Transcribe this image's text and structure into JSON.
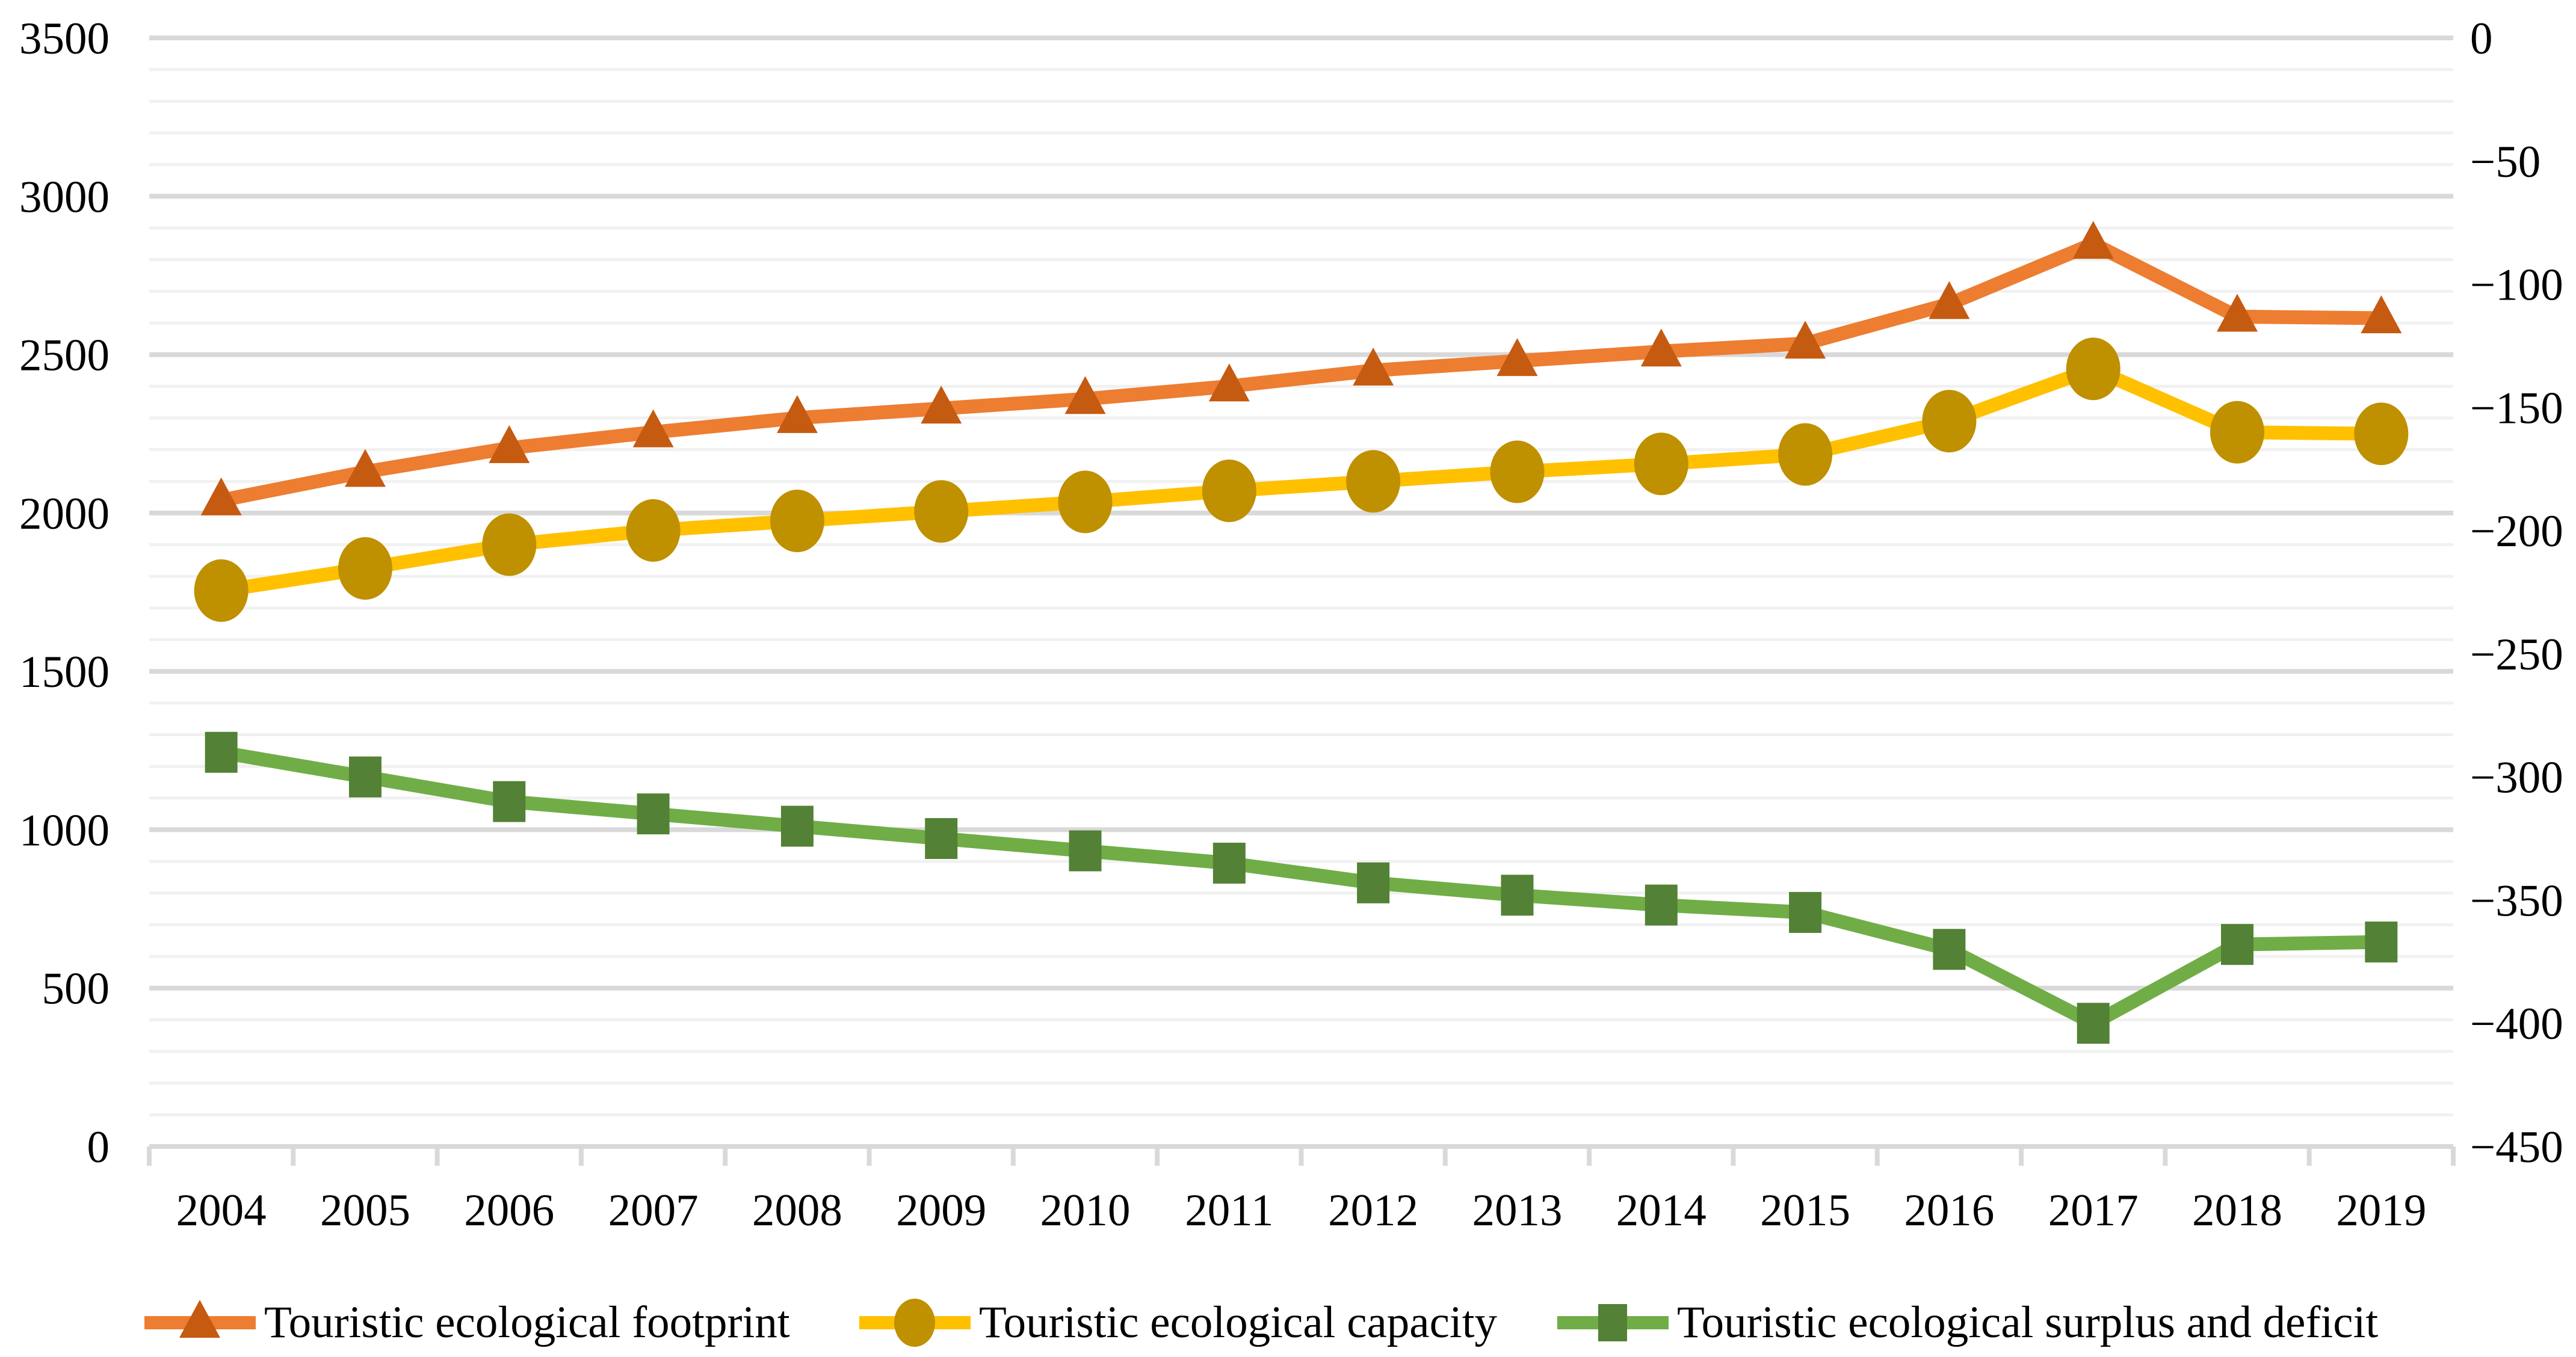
{
  "chart_data": {
    "type": "line",
    "title": "",
    "x_categories": [
      "2004",
      "2005",
      "2006",
      "2007",
      "2008",
      "2009",
      "2010",
      "2011",
      "2012",
      "2013",
      "2014",
      "2015",
      "2016",
      "2017",
      "2018",
      "2019"
    ],
    "left_axis": {
      "min": 0,
      "max": 3500,
      "major_step": 500,
      "minor_step": 100,
      "ticks": [
        0,
        500,
        1000,
        1500,
        2000,
        2500,
        3000,
        3500
      ]
    },
    "right_axis": {
      "min": -450,
      "max": 0,
      "major_step": 50,
      "ticks": [
        {
          "v": 0,
          "label": "0"
        },
        {
          "v": -50,
          "label": "−50"
        },
        {
          "v": -100,
          "label": "−100"
        },
        {
          "v": -150,
          "label": "−150"
        },
        {
          "v": -200,
          "label": "−200"
        },
        {
          "v": -250,
          "label": "−250"
        },
        {
          "v": -300,
          "label": "−300"
        },
        {
          "v": -350,
          "label": "−350"
        },
        {
          "v": -400,
          "label": "−400"
        },
        {
          "v": -450,
          "label": "−450"
        }
      ]
    },
    "grid": {
      "minor_color": "#F1F1F1",
      "major_color": "#D9D9D9",
      "axis_color": "#D9D9D9",
      "legend_on": true,
      "legend_position": "bottom"
    },
    "series": [
      {
        "name": "Touristic ecological footprint",
        "axis": "left",
        "marker": "triangle",
        "color": "#ED7D31",
        "marker_color": "#C55A11",
        "values": [
          2040,
          2130,
          2205,
          2255,
          2300,
          2330,
          2360,
          2400,
          2450,
          2480,
          2510,
          2535,
          2660,
          2850,
          2620,
          2615
        ]
      },
      {
        "name": "Touristic ecological capacity",
        "axis": "left",
        "marker": "circle",
        "color": "#FFC000",
        "marker_color": "#BF9000",
        "values": [
          1755,
          1825,
          1900,
          1945,
          1975,
          2005,
          2035,
          2070,
          2100,
          2130,
          2155,
          2185,
          2290,
          2455,
          2255,
          2250
        ]
      },
      {
        "name": "Touristic ecological surplus and deficit",
        "axis": "right",
        "marker": "square",
        "color": "#70AD47",
        "marker_color": "#538135",
        "values": [
          -290,
          -300,
          -310,
          -315,
          -320,
          -325,
          -330,
          -335,
          -343,
          -348,
          -352,
          -355,
          -370,
          -400,
          -368,
          -367
        ]
      }
    ]
  }
}
